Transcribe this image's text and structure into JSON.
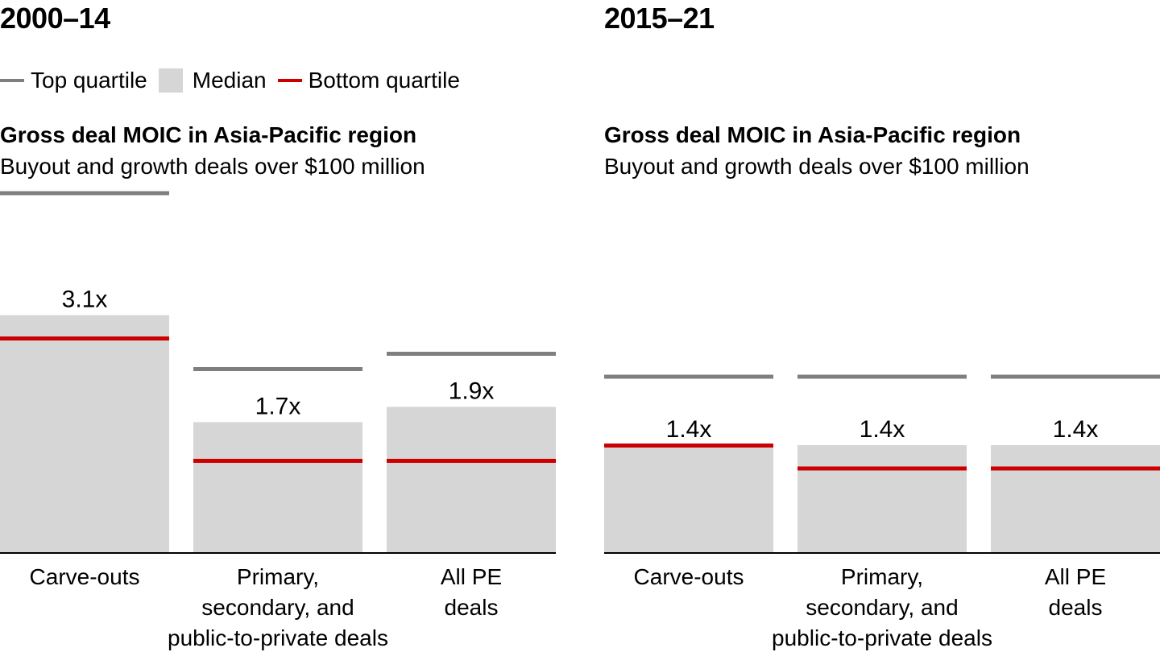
{
  "legend": {
    "items": [
      {
        "label": "Top quartile",
        "swatch": "line",
        "color": "#7f7f7f"
      },
      {
        "label": "Median",
        "swatch": "box",
        "color": "#d6d6d6"
      },
      {
        "label": "Bottom quartile",
        "swatch": "line",
        "color": "#cc0000"
      }
    ]
  },
  "colors": {
    "top": "#7f7f7f",
    "median": "#d6d6d6",
    "bottom": "#cc0000",
    "axis": "#000000"
  },
  "chart_data": [
    {
      "type": "bar",
      "panel_title": "2000–14",
      "title": "Gross deal MOIC in Asia-Pacific region",
      "subtitle": "Buyout and growth deals over $100 million",
      "categories": [
        "Carve-outs",
        "Primary, secondary, and public-to-private deals",
        "All PE deals"
      ],
      "category_lines": [
        [
          "Carve-outs"
        ],
        [
          "Primary,",
          "secondary, and",
          "public-to-private deals"
        ],
        [
          "All PE",
          "deals"
        ]
      ],
      "series": [
        {
          "name": "Top quartile",
          "values": [
            4.7,
            2.4,
            2.6
          ]
        },
        {
          "name": "Median",
          "values": [
            3.1,
            1.7,
            1.9
          ]
        },
        {
          "name": "Bottom quartile",
          "values": [
            2.8,
            1.2,
            1.2
          ]
        }
      ],
      "value_labels": [
        "3.1x",
        "1.7x",
        "1.9x"
      ],
      "ylim": [
        0,
        5.0
      ],
      "grid": false
    },
    {
      "type": "bar",
      "panel_title": "2015–21",
      "title": "Gross deal MOIC in Asia-Pacific region",
      "subtitle": "Buyout and growth deals over $100 million",
      "categories": [
        "Carve-outs",
        "Primary, secondary, and public-to-private deals",
        "All PE deals"
      ],
      "category_lines": [
        [
          "Carve-outs"
        ],
        [
          "Primary,",
          "secondary, and",
          "public-to-private deals"
        ],
        [
          "All PE",
          "deals"
        ]
      ],
      "series": [
        {
          "name": "Top quartile",
          "values": [
            2.3,
            2.3,
            2.3
          ]
        },
        {
          "name": "Median",
          "values": [
            1.4,
            1.4,
            1.4
          ]
        },
        {
          "name": "Bottom quartile",
          "values": [
            1.4,
            1.1,
            1.1
          ]
        }
      ],
      "value_labels": [
        "1.4x",
        "1.4x",
        "1.4x"
      ],
      "ylim": [
        0,
        5.0
      ],
      "grid": false
    }
  ]
}
